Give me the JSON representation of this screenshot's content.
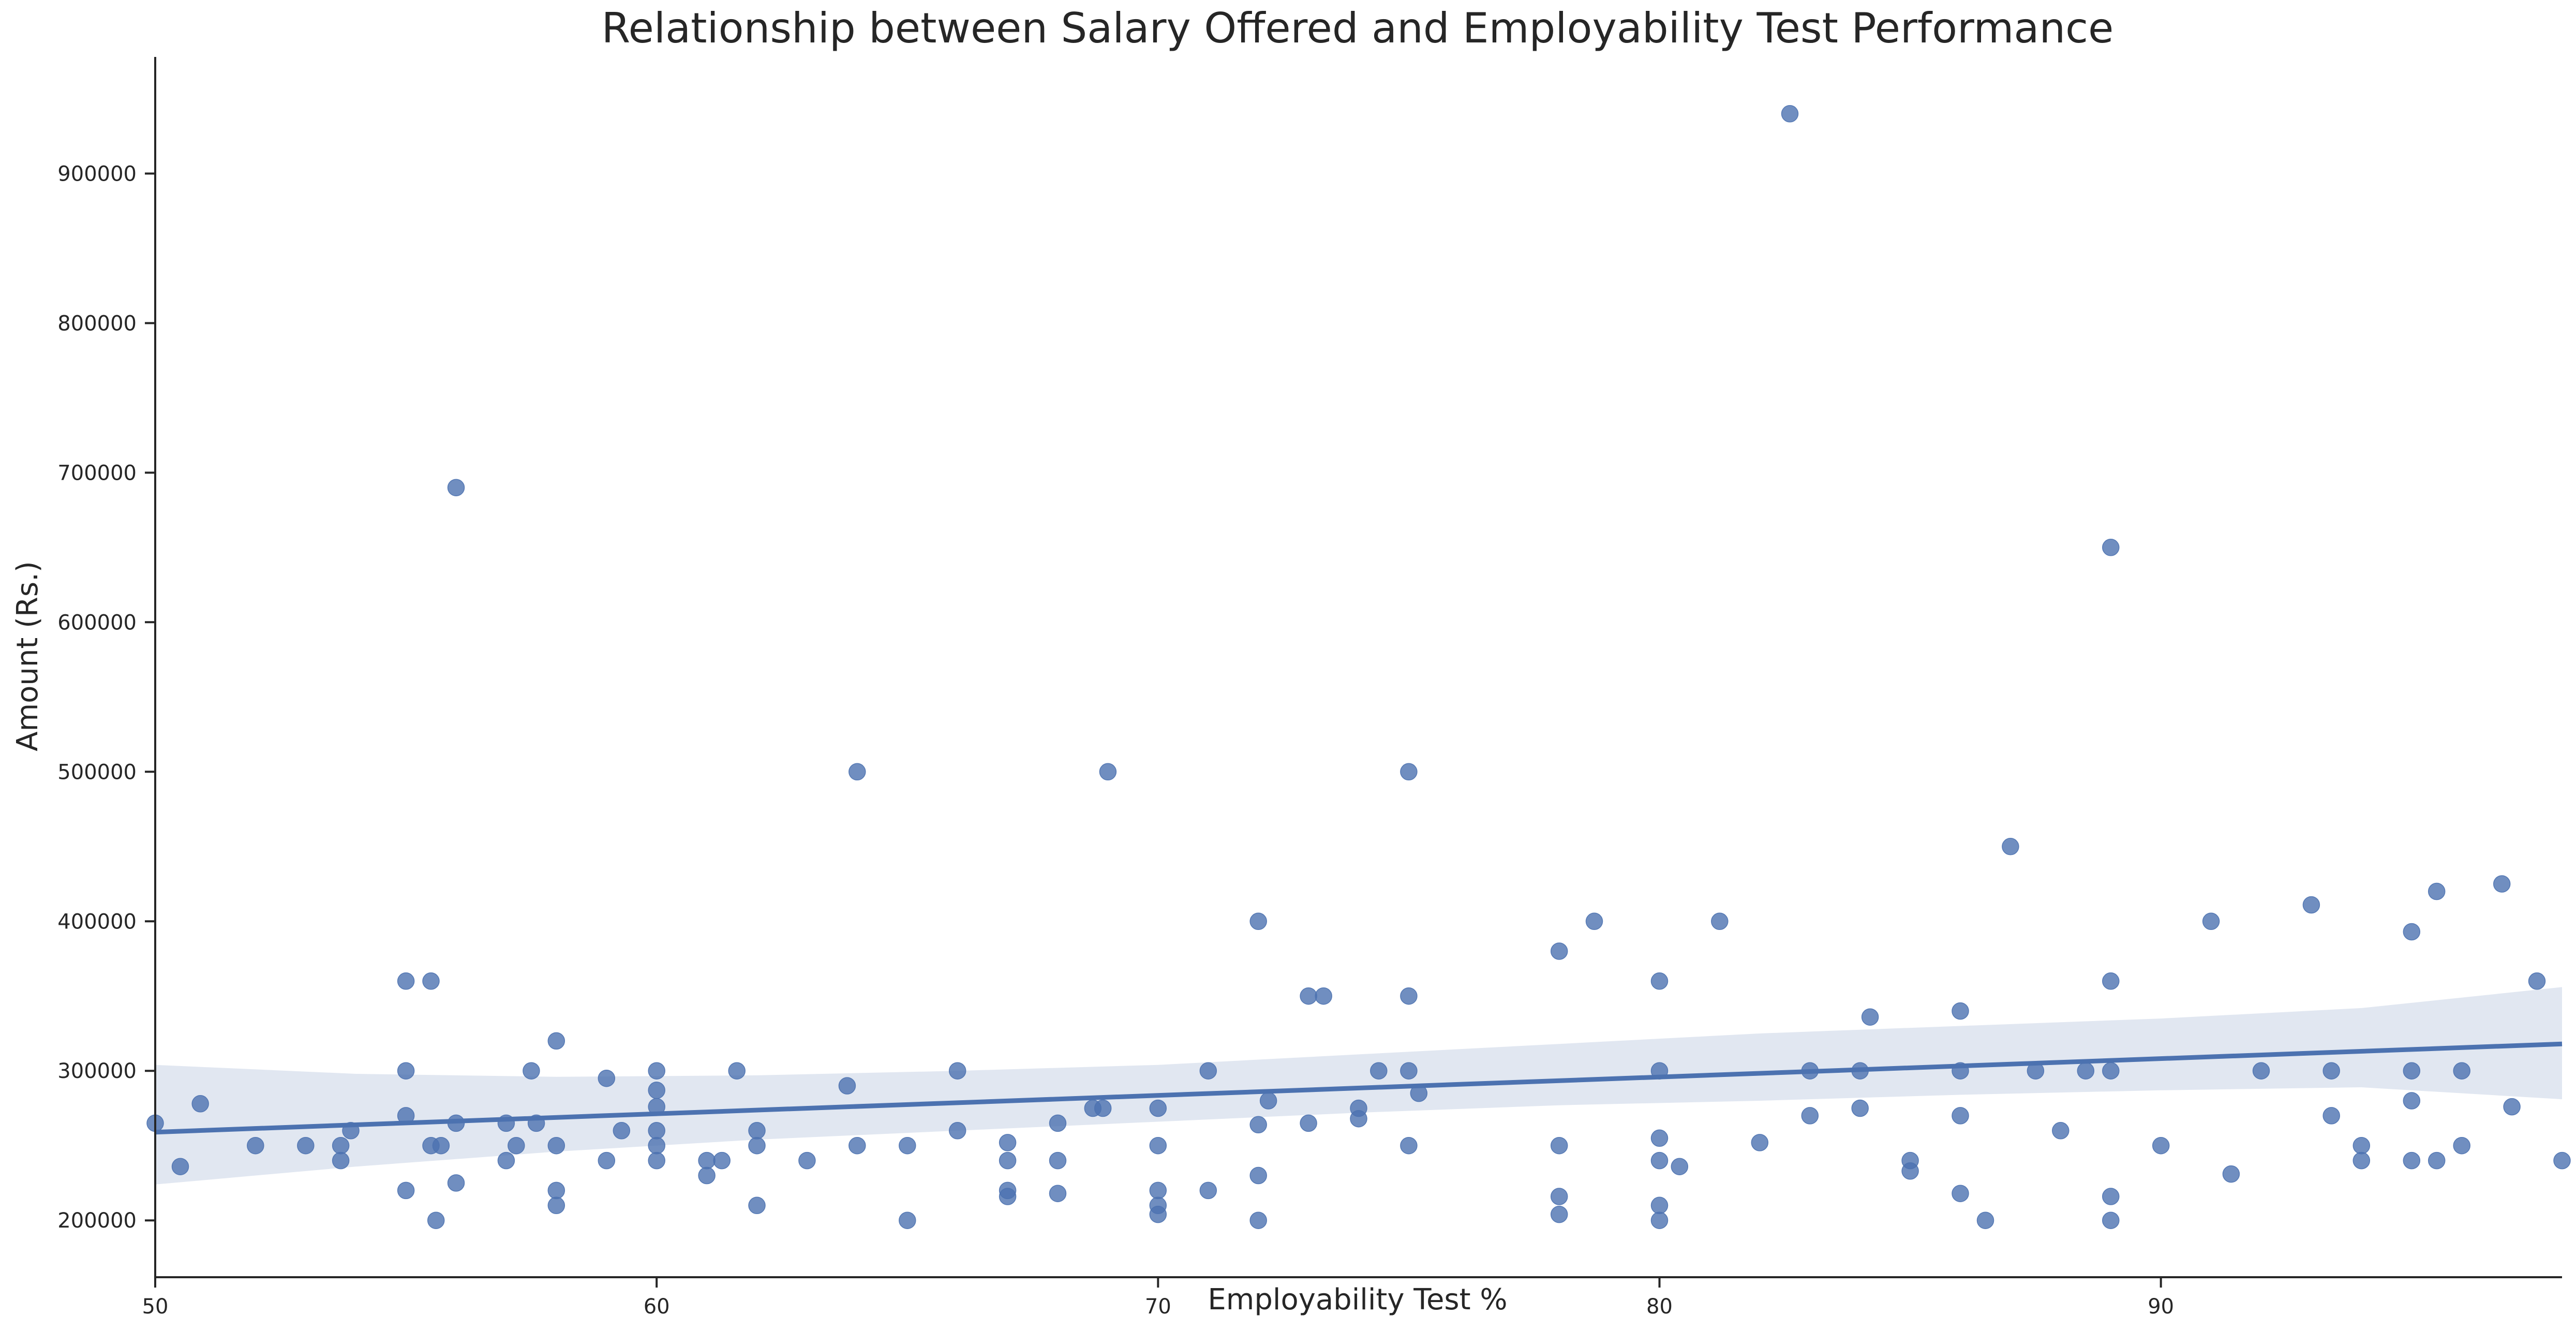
{
  "chart_data": {
    "type": "scatter",
    "title": "Relationship between Salary Offered and Employability Test Performance",
    "xlabel": "Employability Test %",
    "ylabel": "Amount (Rs.)",
    "xlim": [
      50,
      98
    ],
    "ylim": [
      162000,
      978000
    ],
    "xticks": [
      50,
      60,
      70,
      80,
      90
    ],
    "yticks": [
      200000,
      300000,
      400000,
      500000,
      600000,
      700000,
      800000,
      900000
    ],
    "grid": false,
    "colors": {
      "points": "#4c72b0",
      "regression_line": "#4c72b0",
      "confidence_band": "#c8d3e6",
      "axis": "#262626"
    },
    "regression": {
      "x": [
        50,
        98
      ],
      "y": [
        259000,
        318000
      ]
    },
    "confidence_band": {
      "x": [
        50,
        54,
        58,
        62,
        66,
        70,
        74,
        78,
        82,
        86,
        90,
        94,
        98
      ],
      "upper": [
        304000,
        298000,
        296000,
        297000,
        300000,
        304000,
        311000,
        318000,
        325000,
        330000,
        335000,
        342000,
        356000
      ],
      "lower": [
        224000,
        236000,
        246000,
        254000,
        260000,
        266000,
        272000,
        277000,
        280000,
        284000,
        287000,
        289000,
        281000
      ]
    },
    "points": [
      {
        "x": 50,
        "y": 265000
      },
      {
        "x": 50.5,
        "y": 236000
      },
      {
        "x": 50.9,
        "y": 278000
      },
      {
        "x": 52,
        "y": 250000
      },
      {
        "x": 53,
        "y": 250000
      },
      {
        "x": 53.7,
        "y": 250000
      },
      {
        "x": 53.7,
        "y": 240000
      },
      {
        "x": 53.9,
        "y": 260000
      },
      {
        "x": 55,
        "y": 360000
      },
      {
        "x": 55,
        "y": 300000
      },
      {
        "x": 55,
        "y": 270000
      },
      {
        "x": 55,
        "y": 220000
      },
      {
        "x": 55.5,
        "y": 360000
      },
      {
        "x": 55.5,
        "y": 250000
      },
      {
        "x": 55.6,
        "y": 200000
      },
      {
        "x": 55.7,
        "y": 250000
      },
      {
        "x": 56,
        "y": 690000
      },
      {
        "x": 56,
        "y": 265000
      },
      {
        "x": 56,
        "y": 225000
      },
      {
        "x": 57,
        "y": 265000
      },
      {
        "x": 57,
        "y": 240000
      },
      {
        "x": 57.2,
        "y": 250000
      },
      {
        "x": 57.5,
        "y": 300000
      },
      {
        "x": 57.6,
        "y": 265000
      },
      {
        "x": 58,
        "y": 320000
      },
      {
        "x": 58,
        "y": 250000
      },
      {
        "x": 58,
        "y": 220000
      },
      {
        "x": 58,
        "y": 210000
      },
      {
        "x": 59,
        "y": 295000
      },
      {
        "x": 59,
        "y": 240000
      },
      {
        "x": 59.3,
        "y": 260000
      },
      {
        "x": 60,
        "y": 300000
      },
      {
        "x": 60,
        "y": 287000
      },
      {
        "x": 60,
        "y": 276000
      },
      {
        "x": 60,
        "y": 260000
      },
      {
        "x": 60,
        "y": 250000
      },
      {
        "x": 60,
        "y": 240000
      },
      {
        "x": 61,
        "y": 240000
      },
      {
        "x": 61,
        "y": 230000
      },
      {
        "x": 61.3,
        "y": 240000
      },
      {
        "x": 61.6,
        "y": 300000
      },
      {
        "x": 62,
        "y": 260000
      },
      {
        "x": 62,
        "y": 250000
      },
      {
        "x": 62,
        "y": 210000
      },
      {
        "x": 63,
        "y": 240000
      },
      {
        "x": 63.8,
        "y": 290000
      },
      {
        "x": 64,
        "y": 500000
      },
      {
        "x": 64,
        "y": 250000
      },
      {
        "x": 65,
        "y": 250000
      },
      {
        "x": 65,
        "y": 200000
      },
      {
        "x": 66,
        "y": 300000
      },
      {
        "x": 66,
        "y": 260000
      },
      {
        "x": 67,
        "y": 252000
      },
      {
        "x": 67,
        "y": 240000
      },
      {
        "x": 67,
        "y": 220000
      },
      {
        "x": 67,
        "y": 216000
      },
      {
        "x": 68,
        "y": 265000
      },
      {
        "x": 68,
        "y": 240000
      },
      {
        "x": 68,
        "y": 218000
      },
      {
        "x": 68.7,
        "y": 275000
      },
      {
        "x": 68.9,
        "y": 275000
      },
      {
        "x": 69,
        "y": 500000
      },
      {
        "x": 70,
        "y": 275000
      },
      {
        "x": 70,
        "y": 250000
      },
      {
        "x": 70,
        "y": 220000
      },
      {
        "x": 70,
        "y": 210000
      },
      {
        "x": 70,
        "y": 204000
      },
      {
        "x": 71,
        "y": 300000
      },
      {
        "x": 71,
        "y": 220000
      },
      {
        "x": 72,
        "y": 400000
      },
      {
        "x": 72,
        "y": 264000
      },
      {
        "x": 72,
        "y": 230000
      },
      {
        "x": 72,
        "y": 200000
      },
      {
        "x": 72.2,
        "y": 280000
      },
      {
        "x": 73,
        "y": 350000
      },
      {
        "x": 73,
        "y": 265000
      },
      {
        "x": 73.3,
        "y": 350000
      },
      {
        "x": 74,
        "y": 275000
      },
      {
        "x": 74,
        "y": 268000
      },
      {
        "x": 74.4,
        "y": 300000
      },
      {
        "x": 75,
        "y": 500000
      },
      {
        "x": 75,
        "y": 350000
      },
      {
        "x": 75,
        "y": 300000
      },
      {
        "x": 75,
        "y": 250000
      },
      {
        "x": 75.2,
        "y": 285000
      },
      {
        "x": 78,
        "y": 380000
      },
      {
        "x": 78,
        "y": 250000
      },
      {
        "x": 78,
        "y": 216000
      },
      {
        "x": 78,
        "y": 204000
      },
      {
        "x": 78.7,
        "y": 400000
      },
      {
        "x": 80,
        "y": 360000
      },
      {
        "x": 80,
        "y": 300000
      },
      {
        "x": 80,
        "y": 255000
      },
      {
        "x": 80,
        "y": 240000
      },
      {
        "x": 80,
        "y": 210000
      },
      {
        "x": 80,
        "y": 200000
      },
      {
        "x": 80.4,
        "y": 236000
      },
      {
        "x": 81.2,
        "y": 400000
      },
      {
        "x": 82,
        "y": 252000
      },
      {
        "x": 82.6,
        "y": 940000
      },
      {
        "x": 83,
        "y": 300000
      },
      {
        "x": 83,
        "y": 270000
      },
      {
        "x": 84,
        "y": 300000
      },
      {
        "x": 84,
        "y": 275000
      },
      {
        "x": 84.2,
        "y": 336000
      },
      {
        "x": 85,
        "y": 240000
      },
      {
        "x": 85,
        "y": 233000
      },
      {
        "x": 86,
        "y": 340000
      },
      {
        "x": 86,
        "y": 300000
      },
      {
        "x": 86,
        "y": 270000
      },
      {
        "x": 86,
        "y": 218000
      },
      {
        "x": 86.5,
        "y": 200000
      },
      {
        "x": 87,
        "y": 450000
      },
      {
        "x": 87.5,
        "y": 300000
      },
      {
        "x": 88,
        "y": 260000
      },
      {
        "x": 88.5,
        "y": 300000
      },
      {
        "x": 89,
        "y": 650000
      },
      {
        "x": 89,
        "y": 360000
      },
      {
        "x": 89,
        "y": 300000
      },
      {
        "x": 89,
        "y": 216000
      },
      {
        "x": 89,
        "y": 200000
      },
      {
        "x": 90,
        "y": 250000
      },
      {
        "x": 91,
        "y": 400000
      },
      {
        "x": 91.4,
        "y": 231000
      },
      {
        "x": 92,
        "y": 300000
      },
      {
        "x": 93,
        "y": 411000
      },
      {
        "x": 93.4,
        "y": 300000
      },
      {
        "x": 93.4,
        "y": 270000
      },
      {
        "x": 94,
        "y": 250000
      },
      {
        "x": 94,
        "y": 240000
      },
      {
        "x": 95,
        "y": 393000
      },
      {
        "x": 95,
        "y": 300000
      },
      {
        "x": 95,
        "y": 280000
      },
      {
        "x": 95,
        "y": 240000
      },
      {
        "x": 95.5,
        "y": 420000
      },
      {
        "x": 95.5,
        "y": 240000
      },
      {
        "x": 96,
        "y": 300000
      },
      {
        "x": 96,
        "y": 250000
      },
      {
        "x": 96.8,
        "y": 425000
      },
      {
        "x": 97,
        "y": 276000
      },
      {
        "x": 97.5,
        "y": 360000
      },
      {
        "x": 98,
        "y": 240000
      }
    ]
  }
}
